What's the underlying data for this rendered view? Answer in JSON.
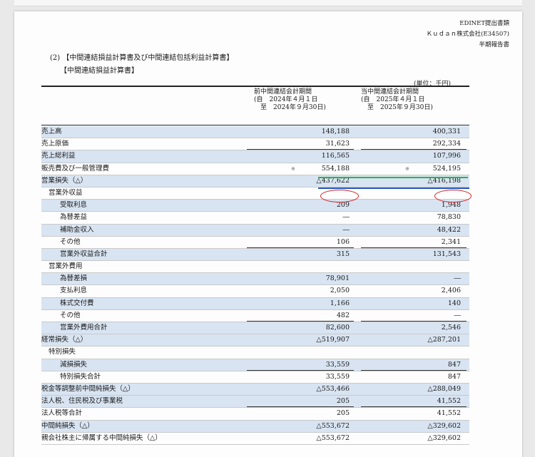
{
  "header": {
    "line1": "EDINET提出書類",
    "line2": "Ｋｕｄａｎ株式会社(E34507)",
    "line3": "半期報告書"
  },
  "section": {
    "title": "(2) 【中間連結損益計算書及び中間連結包括利益計算書】",
    "subtitle": "【中間連結損益計算書】",
    "unit": "(単位：千円)"
  },
  "columns": {
    "prior": [
      "前中間連結会計期間",
      "(自　2024年４月１日",
      "　至　2024年９月30日)"
    ],
    "current": [
      "当中間連結会計期間",
      "(自　2025年４月１日",
      "　至　2025年９月30日)"
    ]
  },
  "rows": [
    {
      "label": "売上高",
      "prior": "148,188",
      "current": "400,331"
    },
    {
      "label": "売上原価",
      "prior": "31,623",
      "current": "292,334"
    },
    {
      "label": "売上総利益",
      "prior": "116,565",
      "current": "107,996"
    },
    {
      "label": "販売費及び一般管理費",
      "prior": "554,188",
      "current": "524,195",
      "asterisk": "※"
    },
    {
      "label": "営業損失（△）",
      "prior": "△437,622",
      "current": "△416,198"
    },
    {
      "label": "営業外収益",
      "prior": "",
      "current": ""
    },
    {
      "label": "受取利息",
      "prior": "209",
      "current": "1,948"
    },
    {
      "label": "為替差益",
      "prior": "―",
      "current": "78,830"
    },
    {
      "label": "補助金収入",
      "prior": "―",
      "current": "48,422"
    },
    {
      "label": "その他",
      "prior": "106",
      "current": "2,341"
    },
    {
      "label": "営業外収益合計",
      "prior": "315",
      "current": "131,543"
    },
    {
      "label": "営業外費用",
      "prior": "",
      "current": ""
    },
    {
      "label": "為替差損",
      "prior": "78,901",
      "current": "―"
    },
    {
      "label": "支払利息",
      "prior": "2,050",
      "current": "2,406"
    },
    {
      "label": "株式交付費",
      "prior": "1,166",
      "current": "140"
    },
    {
      "label": "その他",
      "prior": "482",
      "current": "―"
    },
    {
      "label": "営業外費用合計",
      "prior": "82,600",
      "current": "2,546"
    },
    {
      "label": "経常損失（△）",
      "prior": "△519,907",
      "current": "△287,201"
    },
    {
      "label": "特別損失",
      "prior": "",
      "current": ""
    },
    {
      "label": "減損損失",
      "prior": "33,559",
      "current": "847"
    },
    {
      "label": "特別損失合計",
      "prior": "33,559",
      "current": "847"
    },
    {
      "label": "税金等調整前中間純損失（△）",
      "prior": "△553,466",
      "current": "△288,049"
    },
    {
      "label": "法人税、住民税及び事業税",
      "prior": "205",
      "current": "41,552"
    },
    {
      "label": "法人税等合計",
      "prior": "205",
      "current": "41,552"
    },
    {
      "label": "中間純損失（△）",
      "prior": "△553,672",
      "current": "△329,602"
    },
    {
      "label": "親会社株主に帰属する中間純損失（△）",
      "prior": "△553,672",
      "current": "△329,602"
    }
  ]
}
